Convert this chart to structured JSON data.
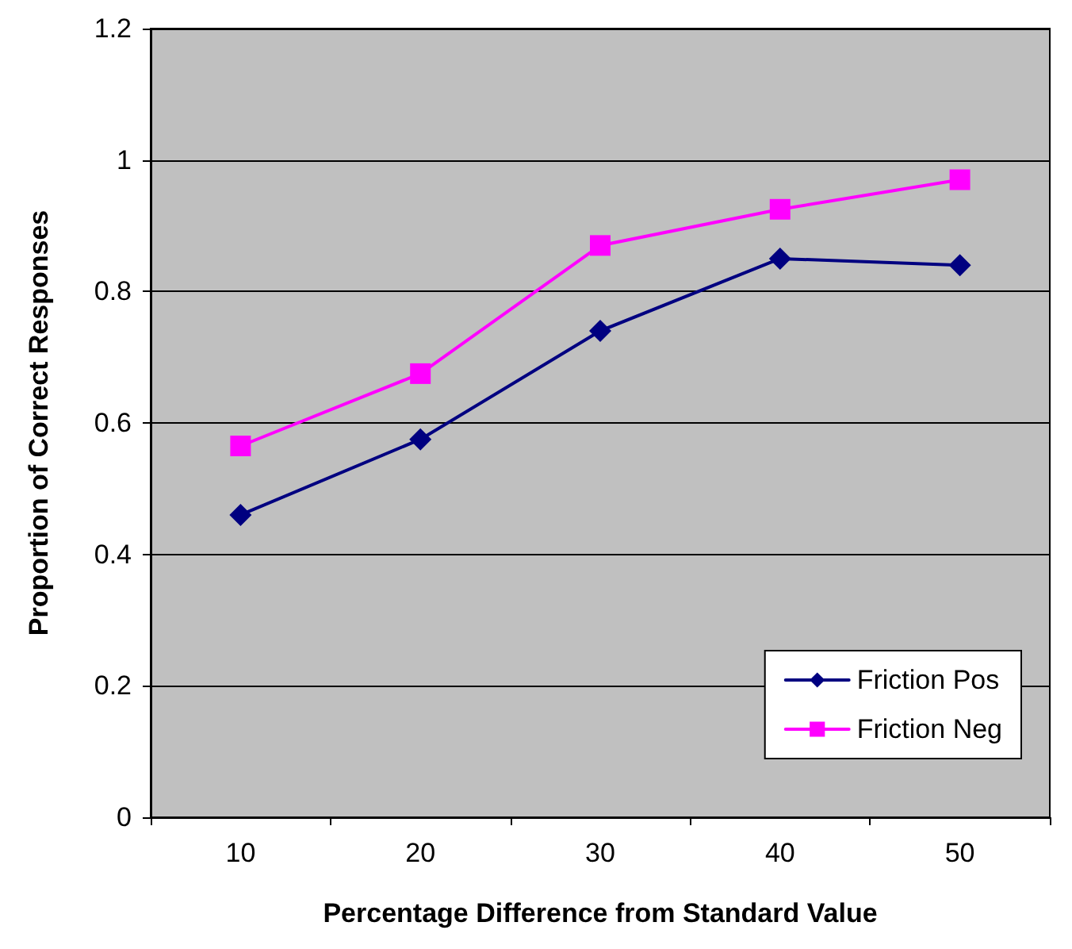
{
  "chart_data": {
    "type": "line",
    "xlabel": "Percentage Difference from Standard Value",
    "ylabel": "Proportion of Correct Responses",
    "categories": [
      "10",
      "20",
      "30",
      "40",
      "50"
    ],
    "series": [
      {
        "name": "Friction Pos",
        "color": "#000080",
        "marker": "diamond",
        "values": [
          0.46,
          0.575,
          0.74,
          0.85,
          0.84
        ]
      },
      {
        "name": "Friction Neg",
        "color": "#ff00ff",
        "marker": "square",
        "values": [
          0.565,
          0.675,
          0.87,
          0.925,
          0.97
        ]
      }
    ],
    "ylim": [
      0,
      1.2
    ],
    "yticks": [
      0,
      0.2,
      0.4,
      0.6,
      0.8,
      1,
      1.2
    ],
    "grid": "y",
    "legend": "bottom right"
  }
}
